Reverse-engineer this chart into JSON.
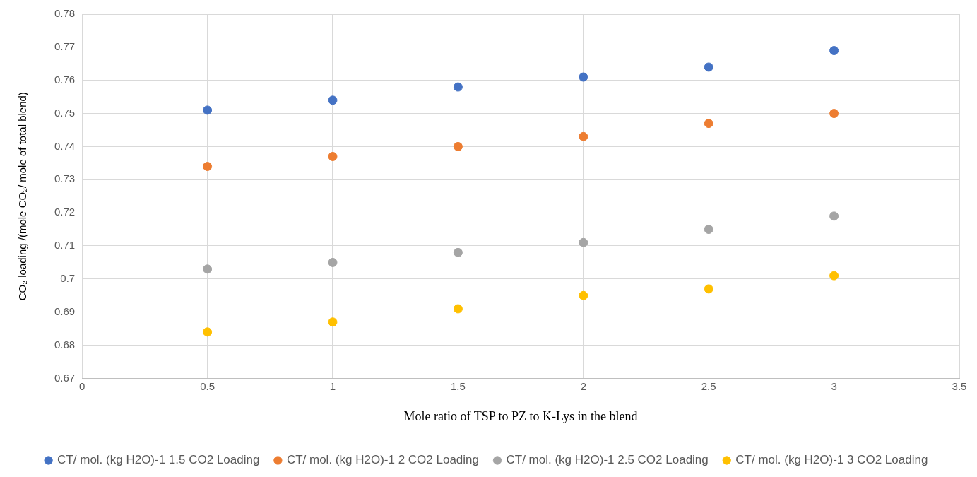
{
  "chart_data": {
    "type": "scatter",
    "xlabel": "Mole ratio of TSP to PZ to K-Lys in the blend",
    "ylabel": "CO₂ loading /(mole CO₂/ mole of total blend)",
    "x": [
      0.5,
      1,
      1.5,
      2,
      2.5,
      3
    ],
    "series": [
      {
        "name": "CT/ mol. (kg H2O)-1 1.5 CO2 Loading",
        "color": "#4472c4",
        "values": [
          0.751,
          0.754,
          0.758,
          0.761,
          0.764,
          0.769
        ]
      },
      {
        "name": "CT/ mol. (kg H2O)-1 2 CO2 Loading",
        "color": "#ed7d31",
        "values": [
          0.734,
          0.737,
          0.74,
          0.743,
          0.747,
          0.75
        ]
      },
      {
        "name": "CT/ mol. (kg H2O)-1 2.5 CO2 Loading",
        "color": "#a5a5a5",
        "values": [
          0.703,
          0.705,
          0.708,
          0.711,
          0.715,
          0.719
        ]
      },
      {
        "name": "CT/ mol. (kg H2O)-1 3 CO2 Loading",
        "color": "#ffc000",
        "values": [
          0.684,
          0.687,
          0.691,
          0.695,
          0.697,
          0.701
        ]
      }
    ],
    "xlim": [
      0,
      3.5
    ],
    "xticks": [
      0,
      0.5,
      1,
      1.5,
      2,
      2.5,
      3,
      3.5
    ],
    "ylim": [
      0.67,
      0.78
    ],
    "yticks": [
      0.67,
      0.68,
      0.69,
      0.7,
      0.71,
      0.72,
      0.73,
      0.74,
      0.75,
      0.76,
      0.77,
      0.78
    ],
    "grid": true,
    "legend": "bottom",
    "marker": "circle"
  }
}
